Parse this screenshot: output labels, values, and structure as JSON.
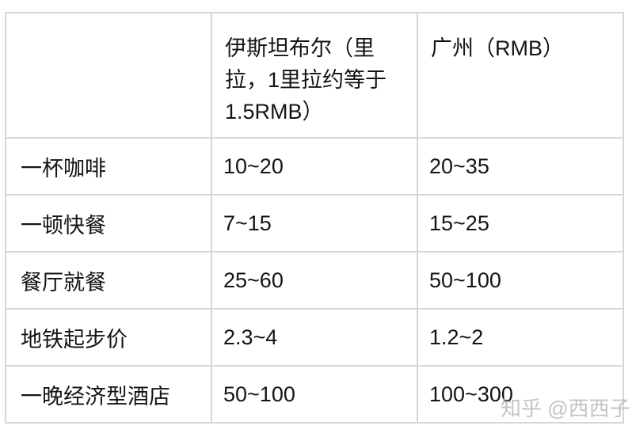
{
  "table": {
    "headers": {
      "item": "",
      "istanbul": "伊斯坦布尔（里拉，1里拉约等于1.5RMB）",
      "guangzhou": "广州（RMB）"
    },
    "rows": [
      {
        "item": "一杯咖啡",
        "istanbul": "10~20",
        "guangzhou": "20~35"
      },
      {
        "item": "一顿快餐",
        "istanbul": "7~15",
        "guangzhou": "15~25"
      },
      {
        "item": "餐厅就餐",
        "istanbul": "25~60",
        "guangzhou": "50~100"
      },
      {
        "item": "地铁起步价",
        "istanbul": "2.3~4",
        "guangzhou": "1.2~2"
      },
      {
        "item": "一晚经济型酒店",
        "istanbul": "50~100",
        "guangzhou": "100~300"
      }
    ]
  },
  "watermark": {
    "text": "知乎 @西西子"
  },
  "colors": {
    "background": "#ffffff",
    "border": "#d6d6d6",
    "text": "#141414",
    "watermark": "#c3c4c6"
  }
}
